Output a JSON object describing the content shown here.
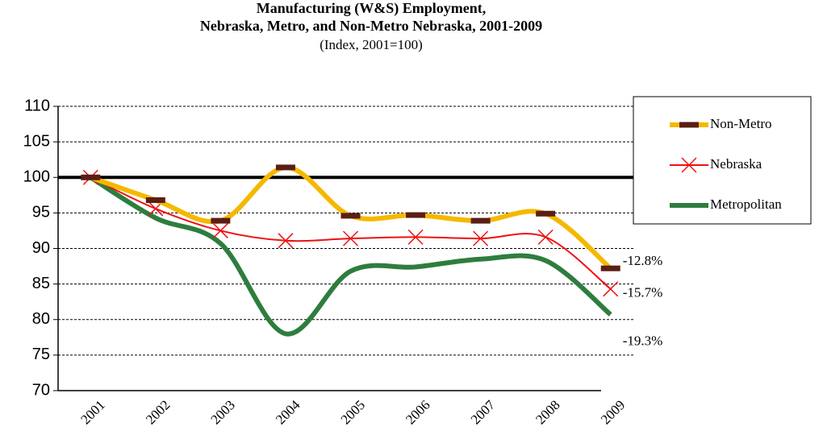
{
  "chart_data": {
    "type": "line",
    "title": [
      "Manufacturing (W&S) Employment,",
      "Nebraska, Metro, and Non-Metro Nebraska,  2001-2009"
    ],
    "subtitle": "(Index, 2001=100)",
    "categories": [
      "2001",
      "2002",
      "2003",
      "2004",
      "2005",
      "2006",
      "2007",
      "2008",
      "2009"
    ],
    "series": [
      {
        "name": "Non-Metro",
        "color": "#f5b800",
        "marker": "dash",
        "marker_color": "#5a1e14",
        "values": [
          100,
          96.8,
          93.9,
          101.4,
          94.6,
          94.7,
          93.9,
          94.9,
          87.2
        ]
      },
      {
        "name": "Nebraska",
        "color": "#ee1111",
        "marker": "x",
        "marker_color": "#ee1111",
        "values": [
          100,
          95.6,
          92.5,
          91.1,
          91.4,
          91.6,
          91.4,
          91.6,
          84.3
        ]
      },
      {
        "name": "Metropolitan",
        "color": "#2e7d3e",
        "marker": "none",
        "values": [
          100,
          94.3,
          90.7,
          78,
          86.8,
          87.4,
          88.5,
          88.3,
          80.7
        ]
      }
    ],
    "annotations": [
      "-12.8%",
      "-15.7%",
      "-19.3%"
    ],
    "reference_line": 100,
    "ylim": [
      70,
      110
    ],
    "yticks": [
      70,
      75,
      80,
      85,
      90,
      95,
      100,
      105,
      110
    ],
    "grid": true,
    "legend": "right"
  }
}
